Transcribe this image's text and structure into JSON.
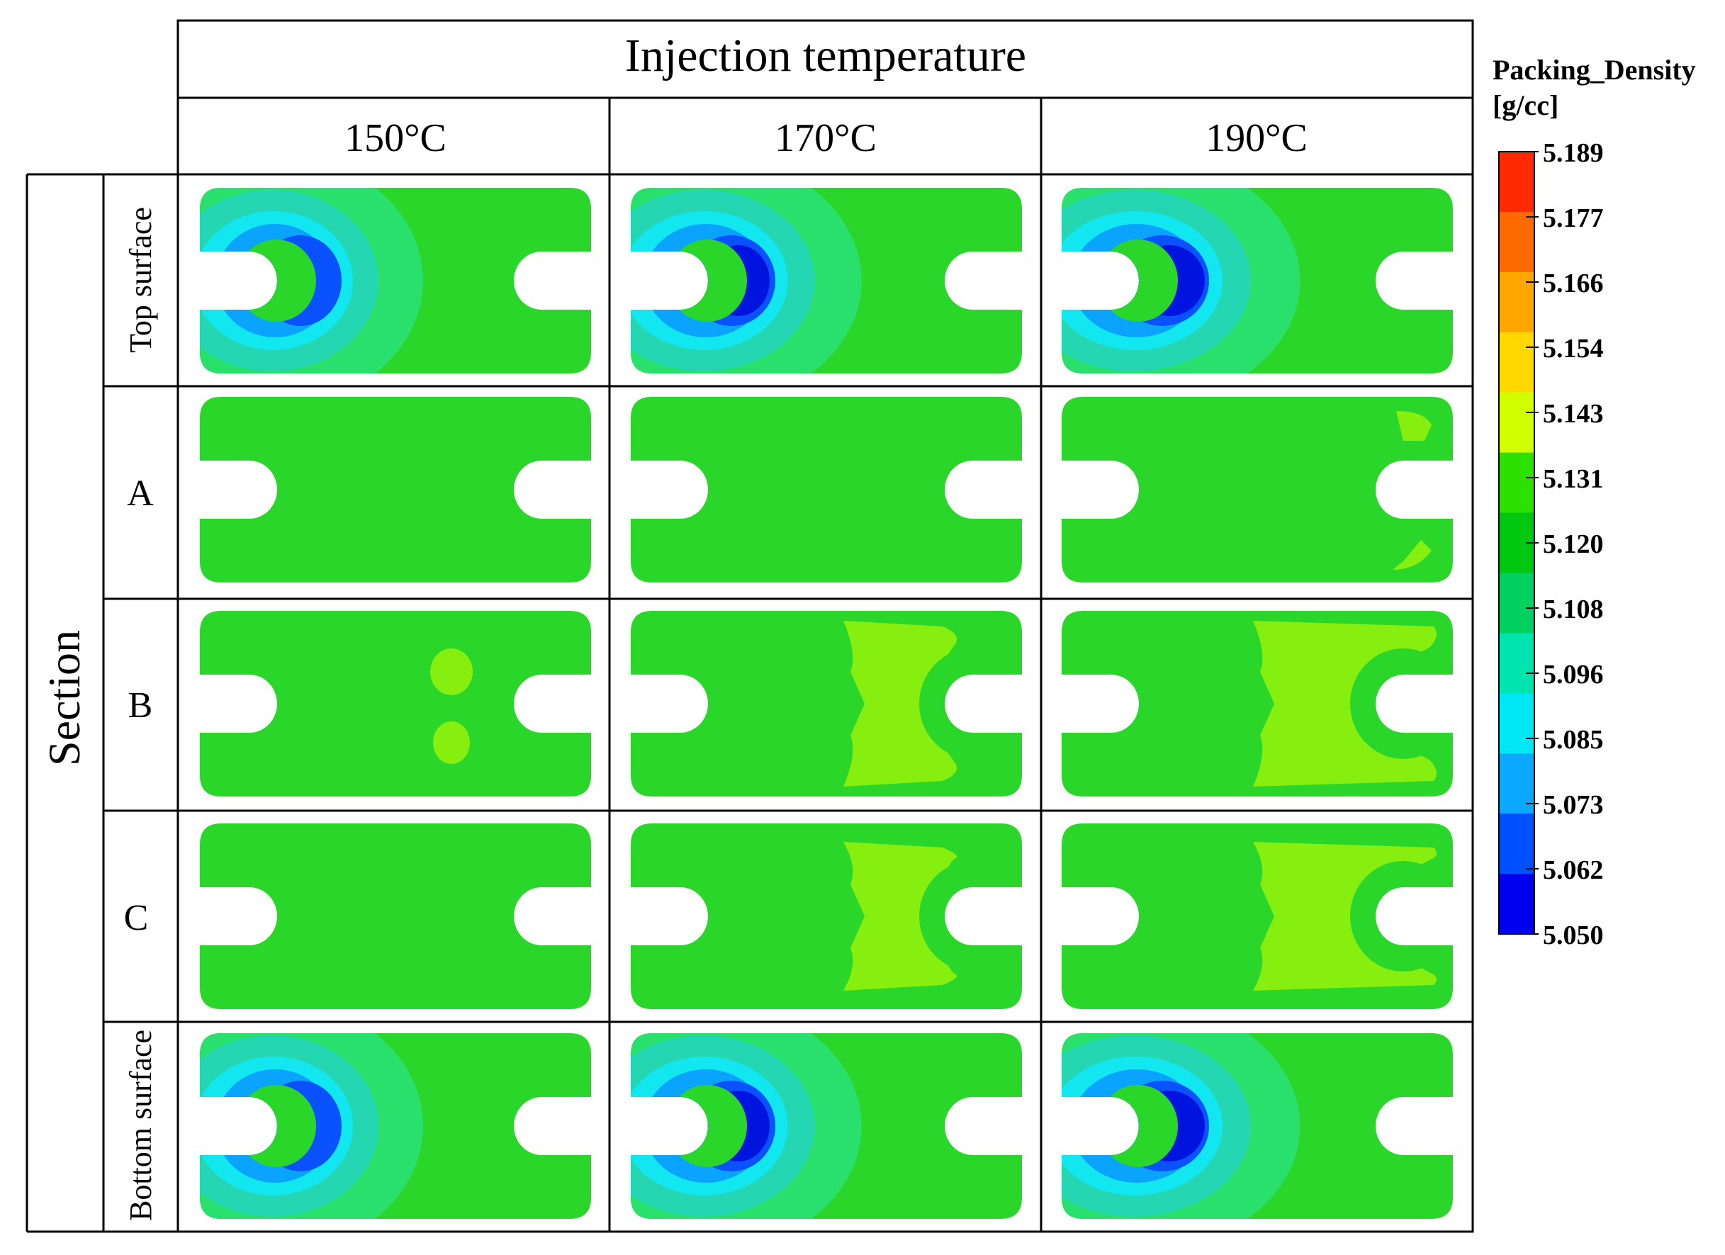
{
  "figure": {
    "header": "Injection temperature",
    "row_group_label": "Section",
    "temperatures": [
      "150°C",
      "170°C",
      "190°C"
    ],
    "sections": [
      "Top surface",
      "A",
      "B",
      "C",
      "Bottom surface"
    ]
  },
  "legend": {
    "title_line1": "Packing_Density",
    "title_line2": "[g/cc]",
    "ticks": [
      "5.189",
      "5.177",
      "5.166",
      "5.154",
      "5.143",
      "5.131",
      "5.120",
      "5.108",
      "5.096",
      "5.085",
      "5.073",
      "5.062",
      "5.050"
    ],
    "colors": [
      "#ff2a00",
      "#ff6a00",
      "#ffa600",
      "#ffd800",
      "#d2ff00",
      "#2ee000",
      "#00c810",
      "#00d060",
      "#00e4b0",
      "#00e8f4",
      "#0aa8ff",
      "#0050ff",
      "#0000f0"
    ]
  },
  "field_colors": {
    "base": "#2bd62b",
    "light_green": "#86ef10",
    "teal": "#29e06c",
    "aqua": "#24d7b2",
    "cyan": "#12e6ef",
    "sky": "#0aa4ff",
    "blue": "#0a52ff",
    "deep_blue": "#0014e0"
  }
}
